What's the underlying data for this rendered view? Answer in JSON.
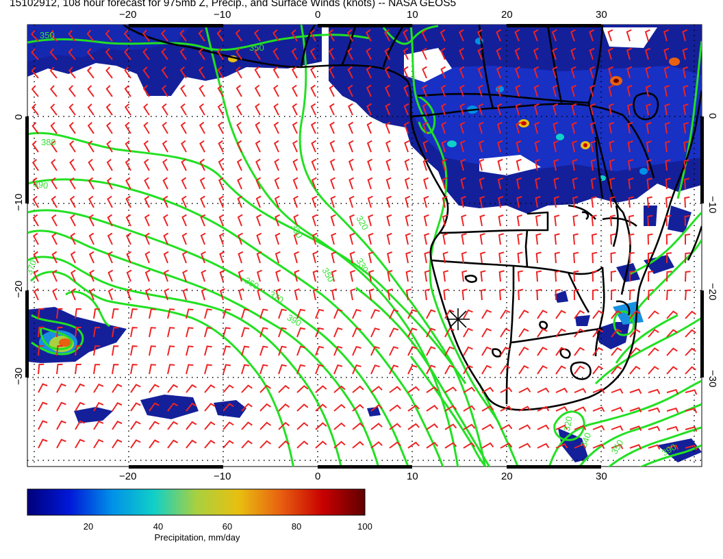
{
  "title": "15102912, 108 hour forecast for 975mb Z, Precip., and Surface Winds (knots) -- NASA GEOS5",
  "map": {
    "lon_ticks_top": [
      "−20",
      "−10",
      "0",
      "10",
      "20",
      "30"
    ],
    "lon_ticks_bottom": [
      "−20",
      "−10",
      "0",
      "10",
      "20",
      "30"
    ],
    "lat_ticks_left": [
      "0",
      "−10",
      "−20",
      "−30"
    ],
    "lat_ticks_right": [
      "0",
      "−10",
      "−20",
      "−30"
    ],
    "contour_labels": [
      "350",
      "390",
      "370",
      "380",
      "350",
      "360",
      "370",
      "390",
      "330",
      "350",
      "320",
      "330",
      "320",
      "340",
      "350",
      "390"
    ],
    "colors": {
      "contour": "#22e022",
      "wind_barb": "#ee2222",
      "coastline": "#000000",
      "precip_base": "#14209a",
      "grid": "#000000"
    },
    "marker": "forecast-location-asterisk"
  },
  "colorbar": {
    "ticks": [
      "20",
      "40",
      "60",
      "80",
      "100"
    ],
    "label": "Precipitation, mm/day",
    "range": [
      0,
      100
    ],
    "stops": [
      "#00007a",
      "#0018d8",
      "#0090e8",
      "#10d0c8",
      "#a8d040",
      "#e8c010",
      "#e86010",
      "#c80000",
      "#600000"
    ]
  }
}
